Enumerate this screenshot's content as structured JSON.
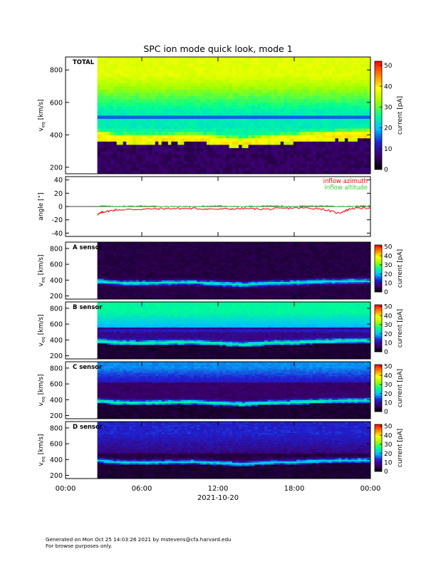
{
  "title": "SPC ion mode quick look, mode 1",
  "date_label": "2021-10-20",
  "footer": {
    "line1": "Generated on Mon Oct 25 14:03:26 2021 by mstevens@cfa.harvard.edu",
    "line2": "For browse purposes only."
  },
  "colors": {
    "azimuth": "#ff0000",
    "altitude": "#33cc33",
    "colormap": [
      "#000000",
      "#3b006b",
      "#2020d0",
      "#00c0ff",
      "#00ff90",
      "#a0ff00",
      "#ffff00",
      "#ff8000",
      "#ff0000"
    ]
  },
  "chart_data": [
    {
      "type": "heatmap",
      "panel": "TOTAL",
      "label": "TOTAL",
      "ylabel": "v_eq [km/s]",
      "ylim": [
        160,
        880
      ],
      "yticks": [
        "200",
        "400",
        "600",
        "800"
      ],
      "colorbar": {
        "label": "current [pA]",
        "range": [
          0,
          52
        ],
        "ticks": [
          "0",
          "10",
          "20",
          "30",
          "40",
          "50"
        ]
      },
      "data_start_hour": 2.5,
      "bulk_speed_kms": [
        {
          "t": 2.5,
          "v": 390
        },
        {
          "t": 4,
          "v": 370
        },
        {
          "t": 6,
          "v": 365
        },
        {
          "t": 8,
          "v": 370
        },
        {
          "t": 10,
          "v": 375
        },
        {
          "t": 12,
          "v": 360
        },
        {
          "t": 14,
          "v": 345
        },
        {
          "t": 16,
          "v": 365
        },
        {
          "t": 18,
          "v": 370
        },
        {
          "t": 20,
          "v": 385
        },
        {
          "t": 22,
          "v": 390
        },
        {
          "t": 24,
          "v": 395
        }
      ]
    },
    {
      "type": "line",
      "panel": "angle",
      "ylabel": "angle [°]",
      "ylim": [
        -45,
        45
      ],
      "yticks": [
        "-40",
        "-20",
        "0",
        "20",
        "40"
      ],
      "series": [
        {
          "name": "inflow azimuth",
          "points": [
            {
              "t": 2.5,
              "v": -12
            },
            {
              "t": 3,
              "v": -8
            },
            {
              "t": 4,
              "v": -5
            },
            {
              "t": 6,
              "v": -4
            },
            {
              "t": 8,
              "v": -3
            },
            {
              "t": 10,
              "v": -3
            },
            {
              "t": 12,
              "v": -4
            },
            {
              "t": 14,
              "v": -3
            },
            {
              "t": 16,
              "v": -4
            },
            {
              "t": 18,
              "v": -2
            },
            {
              "t": 20,
              "v": -3
            },
            {
              "t": 21.5,
              "v": -10
            },
            {
              "t": 22.5,
              "v": -3
            },
            {
              "t": 24,
              "v": -2
            }
          ]
        },
        {
          "name": "inflow altitude",
          "points": [
            {
              "t": 2.5,
              "v": 1
            },
            {
              "t": 4,
              "v": 0
            },
            {
              "t": 6,
              "v": 1
            },
            {
              "t": 8,
              "v": 0
            },
            {
              "t": 10,
              "v": 0
            },
            {
              "t": 12,
              "v": 1
            },
            {
              "t": 14,
              "v": 0
            },
            {
              "t": 16,
              "v": 1
            },
            {
              "t": 18,
              "v": 0
            },
            {
              "t": 20,
              "v": 1
            },
            {
              "t": 22,
              "v": 0
            },
            {
              "t": 24,
              "v": 1
            }
          ]
        }
      ]
    },
    {
      "type": "heatmap",
      "panel": "A",
      "label": "A sensor",
      "ylabel": "v_eq [km/s]",
      "ylim": [
        160,
        880
      ],
      "yticks": [
        "200",
        "400",
        "600",
        "800"
      ],
      "colorbar": {
        "label": "current [pA]",
        "range": [
          0,
          52
        ],
        "ticks": [
          "0",
          "10",
          "20",
          "30",
          "40",
          "50"
        ]
      }
    },
    {
      "type": "heatmap",
      "panel": "B",
      "label": "B sensor",
      "ylabel": "v_eq [km/s]",
      "ylim": [
        160,
        880
      ],
      "yticks": [
        "200",
        "400",
        "600",
        "800"
      ],
      "colorbar": {
        "label": "current [pA]",
        "range": [
          0,
          52
        ],
        "ticks": [
          "0",
          "10",
          "20",
          "30",
          "40",
          "50"
        ]
      }
    },
    {
      "type": "heatmap",
      "panel": "C",
      "label": "C sensor",
      "ylabel": "v_eq [km/s]",
      "ylim": [
        160,
        880
      ],
      "yticks": [
        "200",
        "400",
        "600",
        "800"
      ],
      "colorbar": {
        "label": "current [pA]",
        "range": [
          0,
          52
        ],
        "ticks": [
          "0",
          "10",
          "20",
          "30",
          "40",
          "50"
        ]
      }
    },
    {
      "type": "heatmap",
      "panel": "D",
      "label": "D sensor",
      "ylabel": "v_eq [km/s]",
      "ylim": [
        160,
        880
      ],
      "yticks": [
        "200",
        "400",
        "600",
        "800"
      ],
      "colorbar": {
        "label": "current [pA]",
        "range": [
          0,
          52
        ],
        "ticks": [
          "0",
          "10",
          "20",
          "30",
          "40",
          "50"
        ]
      }
    }
  ],
  "x_axis": {
    "range_hours": [
      0,
      24
    ],
    "tick_hours": [
      0,
      6,
      12,
      18,
      24
    ],
    "tick_labels": [
      "00:00",
      "06:00",
      "12:00",
      "18:00",
      "00:00"
    ]
  }
}
